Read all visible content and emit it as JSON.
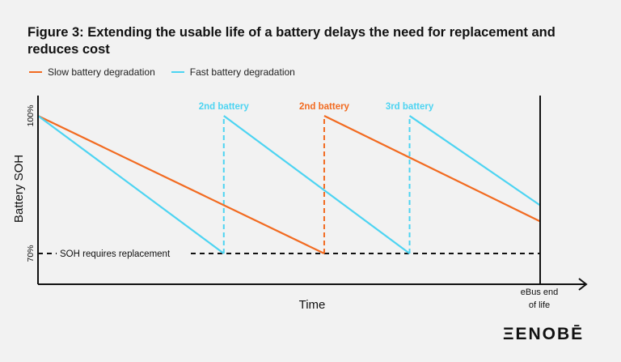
{
  "figure": {
    "title": "Figure 3: Extending the usable life of a battery delays the need for replacement and reduces cost"
  },
  "colors": {
    "background": "#f2f2f2",
    "slow": "#f26b21",
    "fast": "#4dd4f2",
    "threshold": "#111111",
    "axis": "#111111"
  },
  "chart_data": {
    "type": "line",
    "xlabel": "Time",
    "ylabel": "Battery SOH",
    "x_end_label": [
      "eBus end",
      "of life"
    ],
    "y_ticks": [
      "100%",
      "70%"
    ],
    "ylim": [
      64,
      104
    ],
    "xlim": [
      0,
      100
    ],
    "eol_x": 100,
    "threshold": {
      "y": 70,
      "label": "SOH requires replacement"
    },
    "legend_position": "top-left",
    "grid": false,
    "series": [
      {
        "key": "slow",
        "name": "Slow battery degradation",
        "segments": [
          {
            "x": [
              0,
              57
            ],
            "y": [
              100,
              70
            ]
          },
          {
            "x": [
              57,
              100
            ],
            "y": [
              100,
              77
            ]
          }
        ],
        "replacements": [
          {
            "x": 57,
            "label": "2nd battery"
          }
        ]
      },
      {
        "key": "fast",
        "name": "Fast battery degradation",
        "segments": [
          {
            "x": [
              0,
              37
            ],
            "y": [
              100,
              70
            ]
          },
          {
            "x": [
              37,
              74
            ],
            "y": [
              100,
              70
            ]
          },
          {
            "x": [
              74,
              100
            ],
            "y": [
              100,
              80.5
            ]
          }
        ],
        "replacements": [
          {
            "x": 37,
            "label": "2nd battery"
          },
          {
            "x": 74,
            "label": "3rd battery"
          }
        ]
      }
    ]
  },
  "brand": {
    "logo_text": "ΞENOBĒ"
  }
}
